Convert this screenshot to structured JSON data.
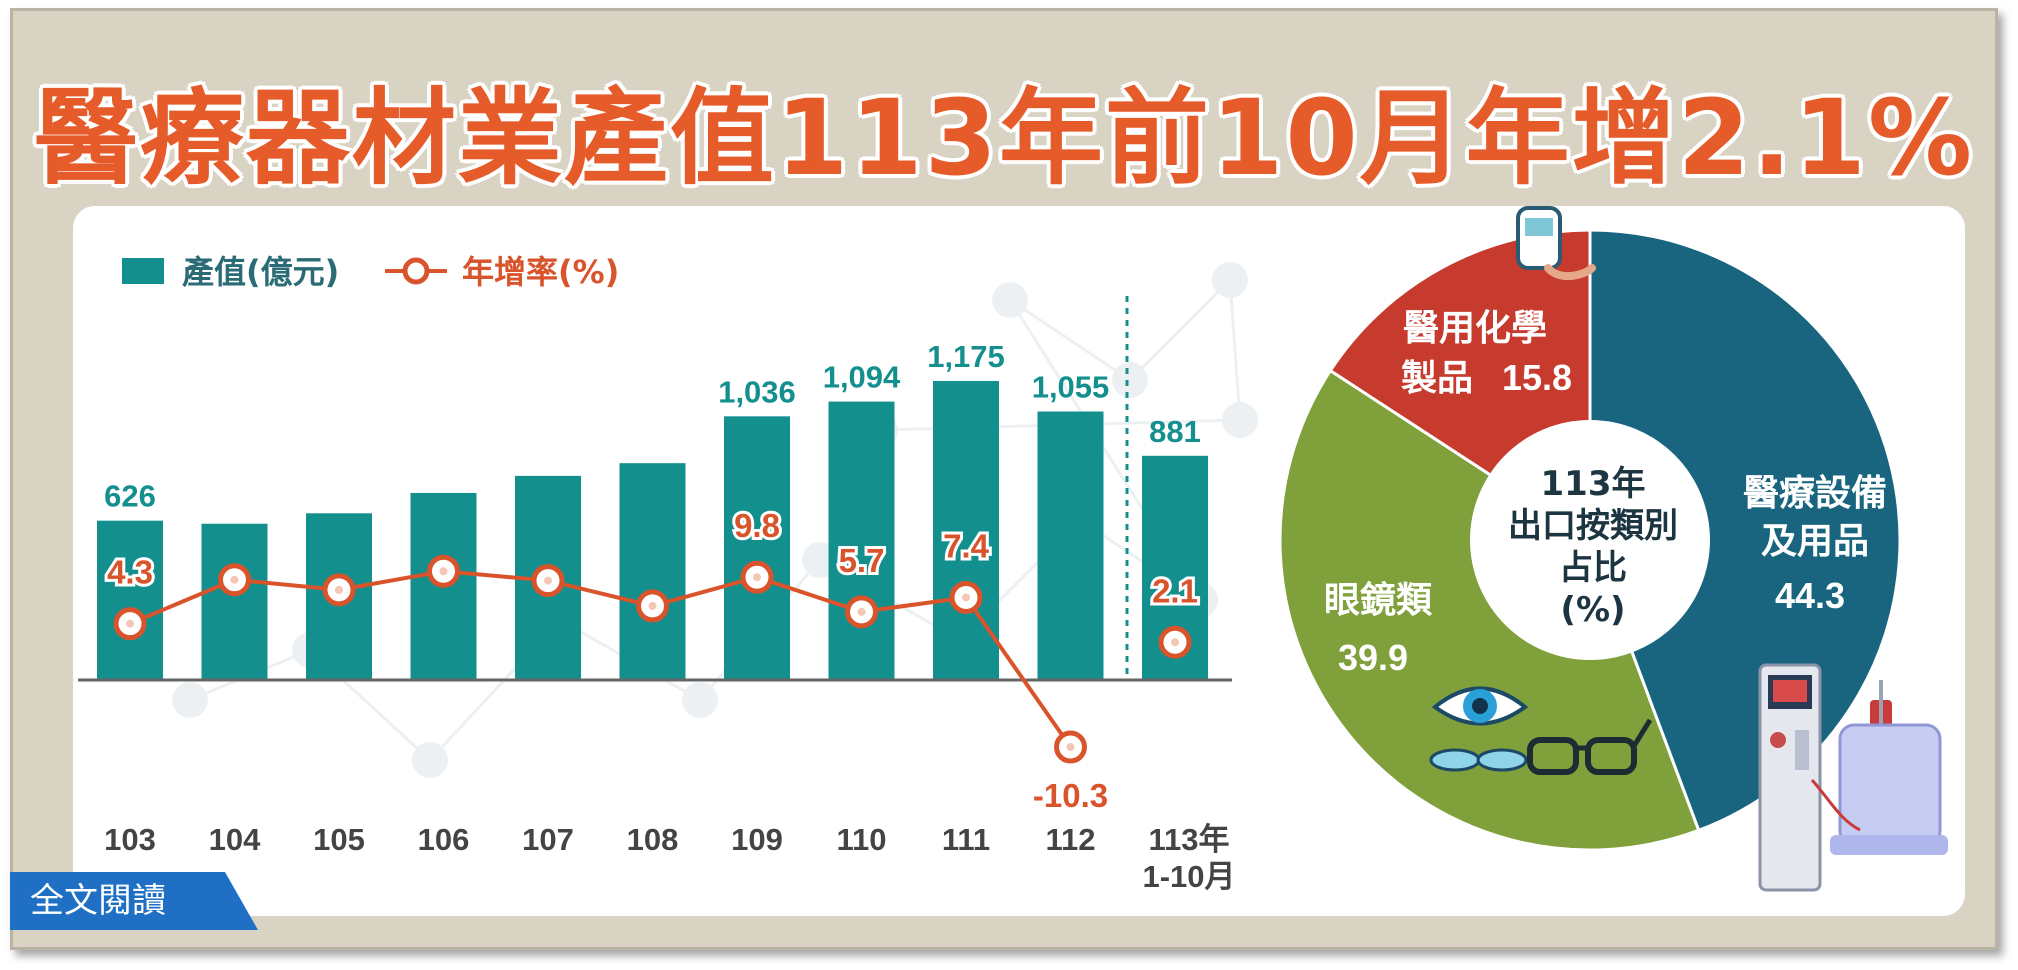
{
  "title": "醫療器材業產值113年前10月年增2.1%",
  "read_button": "全文閱讀",
  "colors": {
    "bar": "#138f8e",
    "line": "#d9532b",
    "medical": "#19657f",
    "chemical": "#c73a2e",
    "eyewear": "#7fa03a",
    "title": "#e65b2a"
  },
  "chart_data": [
    {
      "type": "bar",
      "legend": {
        "bar": "產值(億元)",
        "line": "年增率(%)",
        "position": "top-left"
      },
      "categories": [
        "103",
        "104",
        "105",
        "106",
        "107",
        "108",
        "109",
        "110",
        "111",
        "112",
        "113年\n1-10月"
      ],
      "category_labels": [
        [
          "103"
        ],
        [
          "104"
        ],
        [
          "105"
        ],
        [
          "106"
        ],
        [
          "107"
        ],
        [
          "108"
        ],
        [
          "109"
        ],
        [
          "110"
        ],
        [
          "111"
        ],
        [
          "112"
        ],
        [
          "113年",
          "1-10月"
        ]
      ],
      "series": [
        {
          "name": "產值(億元)",
          "type": "bar",
          "values": [
            626,
            614,
            655,
            735,
            802,
            852,
            1036,
            1094,
            1175,
            1055,
            881
          ],
          "labels": [
            "626",
            "",
            "",
            "",
            "",
            "",
            "1,036",
            "1,094",
            "1,175",
            "1,055",
            "881"
          ]
        },
        {
          "name": "年增率(%)",
          "type": "line",
          "values": [
            4.3,
            9.5,
            8.3,
            10.5,
            9.4,
            6.4,
            9.8,
            5.7,
            7.4,
            -10.3,
            2.1
          ],
          "labels": [
            "4.3",
            "",
            "",
            "",
            "",
            "",
            "9.8",
            "5.7",
            "7.4",
            "-10.3",
            "2.1"
          ]
        }
      ]
    },
    {
      "type": "pie",
      "center_label": [
        "113年",
        "出口按類別",
        "占比",
        "(%)"
      ],
      "slices": [
        {
          "name": "醫療設備及用品",
          "label_lines": [
            "醫療設備",
            "及用品"
          ],
          "value": 44.3,
          "value_label": "44.3"
        },
        {
          "name": "眼鏡類",
          "label_lines": [
            "眼鏡類"
          ],
          "value": 39.9,
          "value_label": "39.9"
        },
        {
          "name": "醫用化學製品",
          "label_lines": [
            "醫用化學",
            "製品"
          ],
          "value": 15.8,
          "value_label": "15.8"
        }
      ]
    }
  ]
}
